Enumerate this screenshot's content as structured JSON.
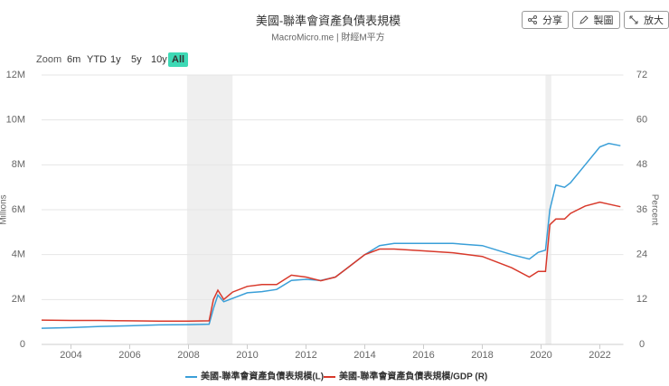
{
  "toolbar": {
    "buttons": [
      "分享",
      "製圖",
      "放大"
    ],
    "range_label": "Zoom",
    "ranges": [
      "6m",
      "YTD",
      "1y",
      "5y",
      "10y",
      "All"
    ],
    "active_range": 5,
    "active_color": "#3dd9b5"
  },
  "chart_data": {
    "type": "line",
    "title": "美國-聯準會資產負債表規模",
    "subtitle": "MacroMicro.me | 財經M平方",
    "ylabel": "Millions",
    "y2label": "Percent",
    "xlim": [
      2003,
      2022.8
    ],
    "xticks": [
      2004,
      2006,
      2008,
      2010,
      2012,
      2014,
      2016,
      2018,
      2020,
      2022
    ],
    "ylim": [
      0,
      12
    ],
    "yticks": [
      {
        "value": 0,
        "label": "0"
      },
      {
        "value": 2,
        "label": "2M"
      },
      {
        "value": 4,
        "label": "4M"
      },
      {
        "value": 6,
        "label": "6M"
      },
      {
        "value": 8,
        "label": "8M"
      },
      {
        "value": 10,
        "label": "10M"
      },
      {
        "value": 12,
        "label": "12M"
      }
    ],
    "y2lim": [
      0,
      72
    ],
    "y2ticks": [
      0,
      12,
      24,
      36,
      48,
      60,
      72
    ],
    "grid": true,
    "shaded_ranges": [
      [
        2007.95,
        2009.5
      ],
      [
        2020.15,
        2020.35
      ]
    ],
    "x": [
      2003,
      2004,
      2005,
      2006,
      2007,
      2008,
      2008.7,
      2008.85,
      2009.0,
      2009.2,
      2009.5,
      2010,
      2010.5,
      2011,
      2011.5,
      2012,
      2012.5,
      2013,
      2013.5,
      2014,
      2014.5,
      2015,
      2016,
      2017,
      2018,
      2019,
      2019.6,
      2019.9,
      2020.15,
      2020.3,
      2020.5,
      2020.8,
      2021,
      2021.5,
      2022,
      2022.3,
      2022.7
    ],
    "series": [
      {
        "name": "美國-聯準會資產負債表規模(L)",
        "color": "#3a9fd8",
        "values": [
          0.72,
          0.75,
          0.8,
          0.83,
          0.87,
          0.88,
          0.9,
          1.6,
          2.2,
          1.9,
          2.05,
          2.3,
          2.35,
          2.45,
          2.85,
          2.9,
          2.85,
          3.0,
          3.5,
          4.0,
          4.4,
          4.5,
          4.5,
          4.5,
          4.4,
          4.0,
          3.8,
          4.1,
          4.2,
          6.0,
          7.1,
          7.0,
          7.2,
          8.0,
          8.8,
          8.95,
          8.85
        ]
      },
      {
        "name": "美國-聯準會資產負債表規模/GDP (R)",
        "color": "#d8392b",
        "axis": "y2",
        "values": [
          6.5,
          6.4,
          6.4,
          6.3,
          6.2,
          6.2,
          6.3,
          12,
          14.5,
          12,
          14,
          15.5,
          16,
          16,
          18.5,
          18,
          17,
          18,
          21,
          24,
          25.5,
          25.5,
          25,
          24.5,
          23.5,
          20.5,
          18,
          19.5,
          19.5,
          32,
          33.5,
          33.5,
          35,
          37,
          38,
          37.5,
          36.8
        ]
      }
    ]
  }
}
